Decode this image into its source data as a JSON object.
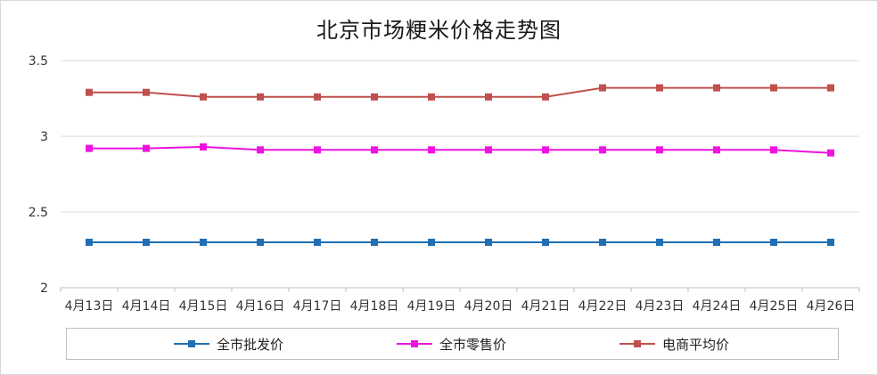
{
  "chart_data": {
    "type": "line",
    "title": "北京市场粳米价格走势图",
    "xlabel": "",
    "ylabel": "",
    "categories": [
      "4月13日",
      "4月14日",
      "4月15日",
      "4月16日",
      "4月17日",
      "4月18日",
      "4月19日",
      "4月20日",
      "4月21日",
      "4月22日",
      "4月23日",
      "4月24日",
      "4月25日",
      "4月26日"
    ],
    "ylim": [
      2,
      3.5
    ],
    "yticks": [
      "2",
      "2.5",
      "3",
      "3.5"
    ],
    "grid": true,
    "legend_position": "bottom",
    "series": [
      {
        "name": "全市批发价",
        "color": "#1f6fb5",
        "values": [
          2.3,
          2.3,
          2.3,
          2.3,
          2.3,
          2.3,
          2.3,
          2.3,
          2.3,
          2.3,
          2.3,
          2.3,
          2.3,
          2.3
        ]
      },
      {
        "name": "全市零售价",
        "color": "#f013e0",
        "values": [
          2.92,
          2.92,
          2.93,
          2.91,
          2.91,
          2.91,
          2.91,
          2.91,
          2.91,
          2.91,
          2.91,
          2.91,
          2.91,
          2.89
        ]
      },
      {
        "name": "电商平均价",
        "color": "#c0504d",
        "values": [
          3.29,
          3.29,
          3.26,
          3.26,
          3.26,
          3.26,
          3.26,
          3.26,
          3.26,
          3.32,
          3.32,
          3.32,
          3.32,
          3.32
        ]
      }
    ]
  }
}
